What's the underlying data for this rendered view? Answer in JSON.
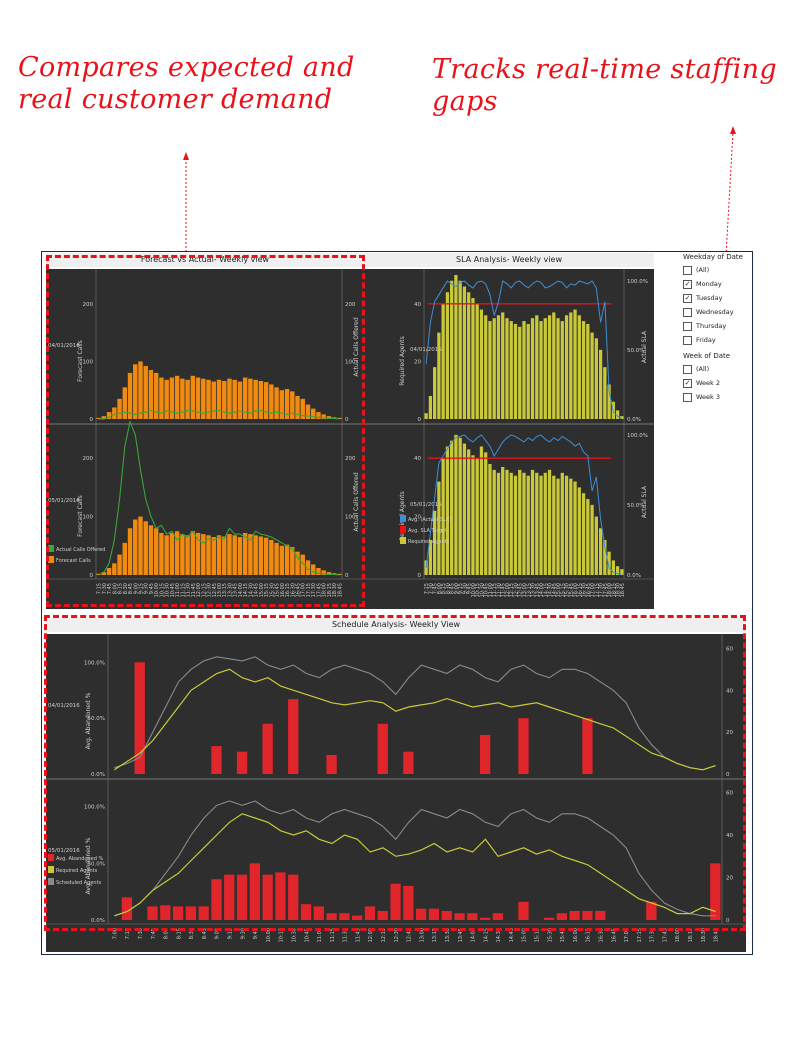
{
  "callouts": {
    "left": [
      "Compares expected and",
      "real customer demand"
    ],
    "right": [
      "Tracks real-time staffing",
      "gaps"
    ]
  },
  "colors": {
    "accent": "#e8121b",
    "chart_bg": "#2e2e2e",
    "forecast": "#f08a10",
    "actual": "#3aa53a",
    "required": "#c9c93a",
    "sla": "#3c8fd6",
    "target": "#e8121b",
    "scheduled": "#8a8a8a",
    "abandoned": "#e0252b"
  },
  "panels": {
    "forecast_title": "Forecast vs Actual- Weekly view",
    "sla_title": "SLA Analysis- Weekly view",
    "schedule_title": "Schedule Analysis- Weekly View"
  },
  "dates": [
    "04/01/2016",
    "05/01/2016"
  ],
  "filters": {
    "weekday_title": "Weekday of Date",
    "weekday_items": [
      {
        "label": "(All)",
        "checked": false
      },
      {
        "label": "Monday",
        "checked": true
      },
      {
        "label": "Tuesday",
        "checked": true
      },
      {
        "label": "Wednesday",
        "checked": false
      },
      {
        "label": "Thursday",
        "checked": false
      },
      {
        "label": "Friday",
        "checked": false
      }
    ],
    "week_title": "Week of Date",
    "week_items": [
      {
        "label": "(All)",
        "checked": false
      },
      {
        "label": "Week 2",
        "checked": true
      },
      {
        "label": "Week 3",
        "checked": false
      }
    ]
  },
  "legends": {
    "forecast": [
      "Actual Calls Offered",
      "Forecast Calls"
    ],
    "sla": [
      "Avg. (Actual SLA)",
      "Avg. SLA Target",
      "Required Agents"
    ],
    "schedule": [
      "Avg. Abandoned %",
      "Required Agents",
      "Scheduled Agents"
    ]
  },
  "axis_labels": {
    "forecast_left": "Forecast Calls",
    "forecast_right": "Actual Calls Offered",
    "sla_left": "Required Agents",
    "sla_right": "Actual SLA",
    "schedule_left": "Avg. Abandoned %"
  },
  "chart_data": [
    {
      "type": "bar",
      "title": "Forecast vs Actual- Weekly view",
      "ylim": [
        0,
        250
      ],
      "yticks": [
        "0",
        "100",
        "200"
      ],
      "categories": [
        "7:15",
        "7:30",
        "7:45",
        "8:00",
        "8:15",
        "8:30",
        "8:45",
        "9:00",
        "9:15",
        "9:30",
        "9:45",
        "10:00",
        "10:15",
        "10:30",
        "10:45",
        "11:00",
        "11:15",
        "11:30",
        "11:45",
        "12:00",
        "12:15",
        "12:30",
        "12:45",
        "13:00",
        "13:15",
        "13:30",
        "13:45",
        "14:00",
        "14:15",
        "14:30",
        "14:45",
        "15:00",
        "15:15",
        "15:30",
        "15:45",
        "16:00",
        "16:15",
        "16:30",
        "16:45",
        "17:00",
        "17:15",
        "17:30",
        "17:45",
        "18:00",
        "18:15",
        "18:30",
        "18:45"
      ],
      "series": [
        {
          "name": "Forecast Calls",
          "date": "04/01/2016",
          "values": [
            2,
            5,
            12,
            20,
            35,
            55,
            80,
            95,
            100,
            92,
            85,
            80,
            72,
            68,
            72,
            75,
            70,
            68,
            75,
            72,
            70,
            68,
            65,
            68,
            66,
            70,
            68,
            65,
            72,
            70,
            68,
            66,
            64,
            60,
            55,
            50,
            52,
            48,
            40,
            35,
            25,
            18,
            12,
            8,
            5,
            3,
            2
          ]
        },
        {
          "name": "Actual Calls Offered",
          "date": "04/01/2016",
          "values": [
            0,
            0,
            3,
            8,
            10,
            12,
            10,
            8,
            10,
            12,
            15,
            12,
            10,
            14,
            12,
            10,
            12,
            15,
            14,
            12,
            10,
            12,
            14,
            15,
            12,
            10,
            12,
            14,
            12,
            10,
            14,
            15,
            12,
            10,
            12,
            10,
            8,
            10,
            8,
            6,
            5,
            4,
            3,
            2,
            1,
            1,
            0
          ]
        },
        {
          "name": "Forecast Calls",
          "date": "05/01/2016",
          "values": [
            2,
            5,
            12,
            20,
            35,
            55,
            80,
            95,
            100,
            92,
            85,
            80,
            72,
            68,
            72,
            75,
            70,
            68,
            75,
            72,
            70,
            68,
            65,
            68,
            66,
            70,
            68,
            65,
            72,
            70,
            68,
            66,
            64,
            60,
            55,
            50,
            52,
            48,
            40,
            35,
            25,
            18,
            12,
            8,
            5,
            3,
            2
          ]
        },
        {
          "name": "Actual Calls Offered",
          "date": "05/01/2016",
          "values": [
            0,
            5,
            20,
            60,
            130,
            220,
            280,
            240,
            180,
            130,
            100,
            80,
            85,
            70,
            75,
            60,
            70,
            65,
            75,
            60,
            55,
            62,
            60,
            65,
            62,
            80,
            70,
            70,
            65,
            60,
            75,
            70,
            68,
            65,
            60,
            55,
            50,
            45,
            30,
            20,
            10,
            5,
            3,
            2,
            1,
            1,
            0
          ]
        }
      ]
    },
    {
      "type": "bar",
      "title": "SLA Analysis- Weekly view",
      "ylim": [
        0,
        50
      ],
      "yticks": [
        "0",
        "20",
        "40"
      ],
      "y2ticks": [
        "0.0%",
        "50.0%",
        "100.0%"
      ],
      "sla_target": 40,
      "series": [
        {
          "name": "Required Agents",
          "date": "04/01/2016",
          "values": [
            2,
            8,
            18,
            30,
            40,
            44,
            48,
            50,
            48,
            46,
            44,
            42,
            40,
            38,
            36,
            34,
            35,
            36,
            37,
            35,
            34,
            33,
            32,
            34,
            33,
            35,
            36,
            34,
            35,
            36,
            37,
            35,
            34,
            36,
            37,
            38,
            36,
            34,
            33,
            30,
            28,
            24,
            18,
            12,
            6,
            3,
            1
          ]
        },
        {
          "name": "Avg. (Actual SLA)",
          "date": "04/01/2016",
          "values": [
            40,
            70,
            85,
            90,
            95,
            100,
            98,
            96,
            99,
            100,
            97,
            95,
            99,
            100,
            98,
            90,
            75,
            85,
            100,
            98,
            95,
            99,
            100,
            97,
            95,
            98,
            100,
            99,
            95,
            96,
            98,
            100,
            99,
            95,
            98,
            97,
            100,
            99,
            98,
            100,
            95,
            70,
            85,
            20,
            5,
            2,
            0
          ]
        },
        {
          "name": "Required Agents",
          "date": "05/01/2016",
          "values": [
            5,
            12,
            22,
            32,
            40,
            44,
            46,
            48,
            47,
            45,
            43,
            41,
            40,
            44,
            42,
            38,
            36,
            35,
            37,
            36,
            35,
            34,
            36,
            35,
            34,
            36,
            35,
            34,
            35,
            36,
            34,
            33,
            35,
            34,
            33,
            32,
            30,
            28,
            26,
            24,
            20,
            16,
            12,
            8,
            5,
            3,
            2
          ]
        },
        {
          "name": "Avg. (Actual SLA)",
          "date": "05/01/2016",
          "values": [
            5,
            30,
            55,
            80,
            85,
            90,
            95,
            98,
            99,
            100,
            97,
            95,
            98,
            100,
            96,
            92,
            85,
            90,
            95,
            98,
            100,
            99,
            97,
            95,
            98,
            96,
            99,
            100,
            97,
            95,
            98,
            96,
            99,
            97,
            95,
            92,
            94,
            88,
            85,
            60,
            70,
            40,
            20,
            5,
            2,
            1,
            0
          ]
        }
      ]
    },
    {
      "type": "bar",
      "title": "Schedule Analysis- Weekly View",
      "yticks": [
        "0.0%",
        "50.0%",
        "100.0%"
      ],
      "y2ticks": [
        "0",
        "20",
        "40",
        "60"
      ],
      "categories": [
        "7:00",
        "7:15",
        "7:30",
        "7:45",
        "8:00",
        "8:15",
        "8:30",
        "8:45",
        "9:00",
        "9:15",
        "9:30",
        "9:45",
        "10:00",
        "10:15",
        "10:30",
        "10:45",
        "11:00",
        "11:15",
        "11:30",
        "11:45",
        "12:00",
        "12:15",
        "12:30",
        "12:45",
        "13:00",
        "13:15",
        "13:30",
        "13:45",
        "14:00",
        "14:15",
        "14:30",
        "14:45",
        "15:00",
        "15:15",
        "15:30",
        "15:45",
        "16:00",
        "16:15",
        "16:30",
        "16:45",
        "17:00",
        "17:15",
        "17:30",
        "17:45",
        "18:00",
        "18:15",
        "18:30",
        "18:45"
      ],
      "series": [
        {
          "name": "Avg. Abandoned %",
          "date": "04/01/2016",
          "values": [
            0,
            0,
            100,
            0,
            0,
            0,
            0,
            0,
            25,
            0,
            20,
            0,
            45,
            0,
            67,
            0,
            0,
            17,
            0,
            0,
            0,
            45,
            0,
            20,
            0,
            0,
            0,
            0,
            0,
            35,
            0,
            0,
            50,
            0,
            0,
            0,
            0,
            50,
            0,
            0,
            0,
            0,
            0,
            0,
            0,
            0,
            0,
            0
          ]
        },
        {
          "name": "Required Agents",
          "date": "04/01/2016",
          "values": [
            2,
            6,
            10,
            16,
            24,
            32,
            40,
            44,
            48,
            50,
            46,
            44,
            46,
            42,
            40,
            38,
            36,
            34,
            33,
            34,
            35,
            34,
            30,
            32,
            33,
            34,
            36,
            34,
            32,
            33,
            34,
            32,
            33,
            34,
            32,
            30,
            28,
            26,
            24,
            22,
            18,
            14,
            10,
            8,
            5,
            3,
            2,
            4
          ]
        },
        {
          "name": "Scheduled Agents",
          "date": "04/01/2016",
          "values": [
            3,
            5,
            8,
            20,
            32,
            44,
            50,
            54,
            56,
            55,
            54,
            56,
            52,
            50,
            52,
            48,
            46,
            50,
            52,
            50,
            48,
            44,
            38,
            46,
            52,
            50,
            48,
            52,
            50,
            46,
            44,
            50,
            52,
            48,
            46,
            50,
            50,
            48,
            44,
            40,
            34,
            22,
            14,
            8,
            5,
            3,
            2,
            4
          ]
        },
        {
          "name": "Avg. Abandoned %",
          "date": "05/01/2016",
          "values": [
            0,
            20,
            0,
            12,
            13,
            12,
            12,
            12,
            36,
            40,
            40,
            50,
            40,
            42,
            40,
            14,
            12,
            6,
            6,
            4,
            12,
            8,
            32,
            30,
            10,
            10,
            8,
            6,
            6,
            2,
            6,
            0,
            16,
            0,
            2,
            6,
            8,
            8,
            8,
            0,
            0,
            0,
            16,
            0,
            0,
            0,
            0,
            50
          ]
        },
        {
          "name": "Required Agents",
          "date": "05/01/2016",
          "values": [
            2,
            4,
            8,
            14,
            18,
            22,
            28,
            34,
            40,
            46,
            50,
            48,
            46,
            42,
            40,
            42,
            38,
            36,
            40,
            38,
            32,
            34,
            30,
            31,
            33,
            36,
            32,
            34,
            32,
            38,
            30,
            32,
            34,
            31,
            33,
            30,
            28,
            26,
            22,
            18,
            14,
            10,
            8,
            6,
            3,
            3,
            6,
            4
          ]
        },
        {
          "name": "Scheduled Agents",
          "date": "05/01/2016",
          "values": [
            2,
            4,
            8,
            14,
            22,
            30,
            40,
            48,
            54,
            56,
            54,
            56,
            52,
            50,
            52,
            48,
            46,
            50,
            52,
            50,
            48,
            44,
            38,
            46,
            52,
            50,
            48,
            52,
            50,
            46,
            44,
            50,
            52,
            48,
            46,
            50,
            50,
            48,
            44,
            40,
            34,
            22,
            14,
            8,
            5,
            3,
            2,
            2
          ]
        }
      ]
    }
  ]
}
